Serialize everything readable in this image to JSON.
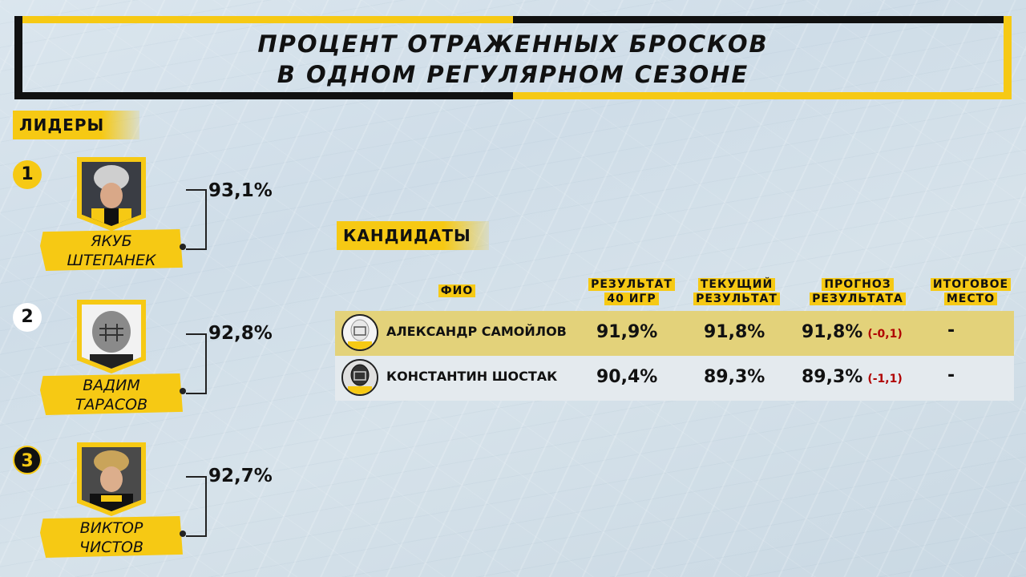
{
  "title": {
    "line1": "ПРОЦЕНТ ОТРАЖЕННЫХ БРОСКОВ",
    "line2": "В ОДНОМ РЕГУЛЯРНОМ СЕЗОНЕ"
  },
  "leaders": {
    "label": "ЛИДЕРЫ",
    "items": [
      {
        "rank": "1",
        "name_line1": "ЯКУБ",
        "name_line2": "ШТЕПАНЕК",
        "value": "93,1%"
      },
      {
        "rank": "2",
        "name_line1": "ВАДИМ",
        "name_line2": "ТАРАСОВ",
        "value": "92,8%"
      },
      {
        "rank": "3",
        "name_line1": "ВИКТОР",
        "name_line2": "ЧИСТОВ",
        "value": "92,7%"
      }
    ]
  },
  "candidates": {
    "label": "КАНДИДАТЫ",
    "headers": {
      "name": "ФИО",
      "result40_l1": "РЕЗУЛЬТАТ",
      "result40_l2": "40 ИГР",
      "current_l1": "ТЕКУЩИЙ",
      "current_l2": "РЕЗУЛЬТАТ",
      "forecast_l1": "ПРОГНОЗ",
      "forecast_l2": "РЕЗУЛЬТАТА",
      "place_l1": "ИТОГОВОЕ",
      "place_l2": "МЕСТО"
    },
    "rows": [
      {
        "name": "АЛЕКСАНДР САМОЙЛОВ",
        "result40": "91,9%",
        "current": "91,8%",
        "forecast": "91,8%",
        "diff": "(-0,1)",
        "place": "-"
      },
      {
        "name": "КОНСТАНТИН ШОСТАК",
        "result40": "90,4%",
        "current": "89,3%",
        "forecast": "89,3%",
        "diff": "(-1,1)",
        "place": "-"
      }
    ]
  },
  "colors": {
    "accent": "#f6c914",
    "dark": "#111111",
    "row1_bg": "#e3d27a",
    "row2_bg": "#e4eaee",
    "diff": "#b00000"
  }
}
